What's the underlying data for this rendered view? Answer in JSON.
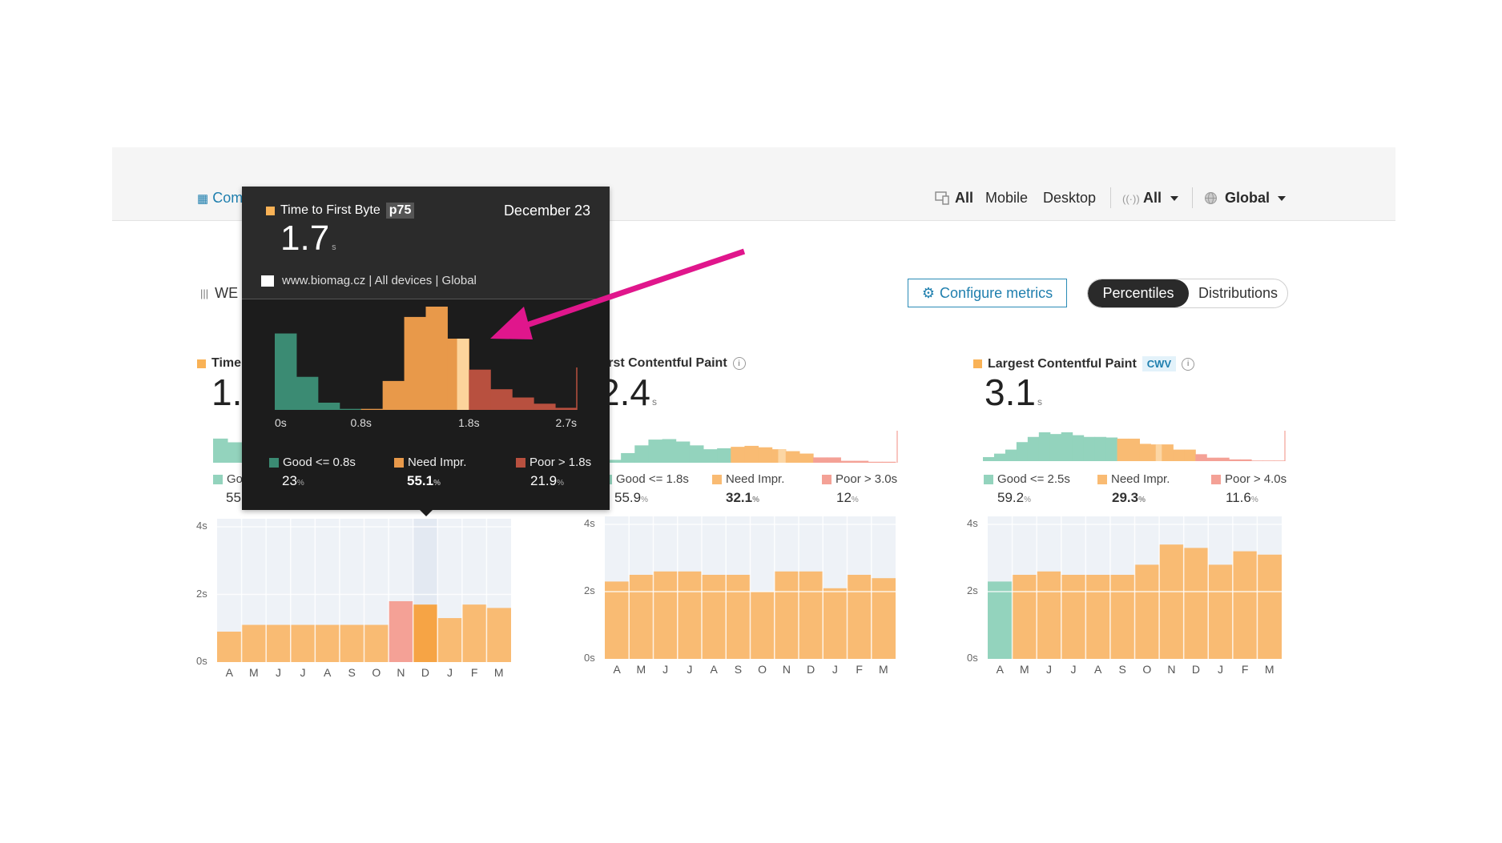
{
  "header": {
    "compare_label": "Com",
    "device_all": "All",
    "device_mobile": "Mobile",
    "device_desktop": "Desktop",
    "connection_selected": "All",
    "region_selected": "Global",
    "section_title": "WE",
    "configure_label": "Configure metrics",
    "toggle_percentiles": "Percentiles",
    "toggle_distributions": "Distributions"
  },
  "colors": {
    "accent": "#1f7fae",
    "good": "#93d3bd",
    "need": "#f9bb73",
    "poor": "#f4a196",
    "marker": "#fcd6a4",
    "tt_good": "#3b8b73",
    "tt_need": "#e8994a",
    "tt_poor": "#b8503f",
    "tt_marker": "#fcd49c",
    "plot_bg": "#eef2f7",
    "annotation_arrow": "#e0168c"
  },
  "tooltip": {
    "metric": "Time to First Byte",
    "badge": "p75",
    "date": "December 23",
    "value": "1.7",
    "unit": "s",
    "context": "www.biomag.cz | All devices | Global",
    "legend": [
      {
        "label": "Good <= 0.8s",
        "pct": "23",
        "unit": "%"
      },
      {
        "label": "Need Impr.",
        "pct": "55.1",
        "unit": "%"
      },
      {
        "label": "Poor > 1.8s",
        "pct": "21.9",
        "unit": "%"
      }
    ]
  },
  "cards": [
    {
      "title": "Time to First Byte",
      "value": "1.",
      "legend_good": "Good",
      "pct_good": "55"
    },
    {
      "title": "First Contentful Paint",
      "value": "2.4",
      "unit": "s",
      "legend": [
        {
          "label": "Good <= 1.8s",
          "pct": "55.9",
          "unit": "%"
        },
        {
          "label": "Need Impr.",
          "pct": "32.1",
          "unit": "%"
        },
        {
          "label": "Poor > 3.0s",
          "pct": "12",
          "unit": "%"
        }
      ]
    },
    {
      "title": "Largest Contentful Paint",
      "badge": "CWV",
      "value": "3.1",
      "unit": "s",
      "legend": [
        {
          "label": "Good <= 2.5s",
          "pct": "59.2",
          "unit": "%"
        },
        {
          "label": "Need Impr.",
          "pct": "29.3",
          "unit": "%"
        },
        {
          "label": "Poor > 4.0s",
          "pct": "11.6",
          "unit": "%"
        }
      ]
    }
  ],
  "chart_data": [
    {
      "id": "tooltip-histogram",
      "type": "bar",
      "title": "",
      "x_ticks": [
        "0s",
        "0.8s",
        "1.8s",
        "2.7s"
      ],
      "values": [
        74,
        32,
        7,
        1,
        1,
        28,
        90,
        100,
        69,
        39,
        20,
        12,
        6,
        2
      ],
      "bands": [
        "g",
        "g",
        "g",
        "g",
        "n",
        "n",
        "n",
        "n",
        "n",
        "p",
        "p",
        "p",
        "p",
        "p"
      ],
      "p75_bin": 8
    },
    {
      "id": "ttfb-histogram",
      "type": "bar",
      "values": [
        52,
        44
      ],
      "bands": [
        "g",
        "g"
      ]
    },
    {
      "id": "fcp-histogram",
      "type": "bar",
      "values": [
        6,
        20,
        36,
        48,
        49,
        44,
        36,
        28,
        30,
        33,
        35,
        32,
        28,
        24,
        19,
        11,
        11,
        4,
        4,
        2,
        2
      ],
      "bands": [
        "g",
        "g",
        "g",
        "g",
        "g",
        "g",
        "g",
        "g",
        "g",
        "n",
        "n",
        "n",
        "n",
        "n",
        "n",
        "p",
        "p",
        "p",
        "p",
        "p",
        "p"
      ],
      "p75_bin": 12
    },
    {
      "id": "lcp-histogram",
      "type": "bar",
      "values": [
        7,
        13,
        20,
        33,
        42,
        50,
        47,
        50,
        45,
        42,
        42,
        41,
        39,
        39,
        30,
        29,
        29,
        20,
        20,
        12,
        6,
        6,
        3,
        3,
        1,
        1,
        1
      ],
      "bands": [
        "g",
        "g",
        "g",
        "g",
        "g",
        "g",
        "g",
        "g",
        "g",
        "g",
        "g",
        "g",
        "n",
        "n",
        "n",
        "n",
        "n",
        "n",
        "n",
        "p",
        "p",
        "p",
        "p",
        "p",
        "p",
        "p",
        "p"
      ],
      "p75_bin": 15
    },
    {
      "id": "ttfb-monthly",
      "type": "bar",
      "unit": "s",
      "categories": [
        "A",
        "M",
        "J",
        "J",
        "A",
        "S",
        "O",
        "N",
        "D",
        "J",
        "F",
        "M"
      ],
      "y_ticks": [
        "0s",
        "2s",
        "4s"
      ],
      "ylim": [
        0,
        4
      ],
      "values": [
        0.9,
        1.1,
        1.1,
        1.1,
        1.1,
        1.1,
        1.1,
        1.8,
        1.7,
        1.3,
        1.7,
        1.6
      ],
      "bands": [
        "n",
        "n",
        "n",
        "n",
        "n",
        "n",
        "n",
        "p",
        "n",
        "n",
        "n",
        "n"
      ],
      "highlighted": 8
    },
    {
      "id": "fcp-monthly",
      "type": "bar",
      "unit": "s",
      "categories": [
        "A",
        "M",
        "J",
        "J",
        "A",
        "S",
        "O",
        "N",
        "D",
        "J",
        "F",
        "M"
      ],
      "y_ticks": [
        "0s",
        "2s",
        "4s"
      ],
      "ylim": [
        0,
        4
      ],
      "values": [
        2.3,
        2.5,
        2.6,
        2.6,
        2.5,
        2.5,
        2.0,
        2.6,
        2.6,
        2.1,
        2.5,
        2.4
      ],
      "bands": [
        "n",
        "n",
        "n",
        "n",
        "n",
        "n",
        "n",
        "n",
        "n",
        "n",
        "n",
        "n"
      ]
    },
    {
      "id": "lcp-monthly",
      "type": "bar",
      "unit": "s",
      "categories": [
        "A",
        "M",
        "J",
        "J",
        "A",
        "S",
        "O",
        "N",
        "D",
        "J",
        "F",
        "M"
      ],
      "y_ticks": [
        "0s",
        "2s",
        "4s"
      ],
      "ylim": [
        0,
        4
      ],
      "values": [
        2.3,
        2.5,
        2.6,
        2.5,
        2.5,
        2.5,
        2.8,
        3.4,
        3.3,
        2.8,
        3.2,
        3.1
      ],
      "bands": [
        "g",
        "n",
        "n",
        "n",
        "n",
        "n",
        "n",
        "n",
        "n",
        "n",
        "n",
        "n"
      ]
    }
  ]
}
